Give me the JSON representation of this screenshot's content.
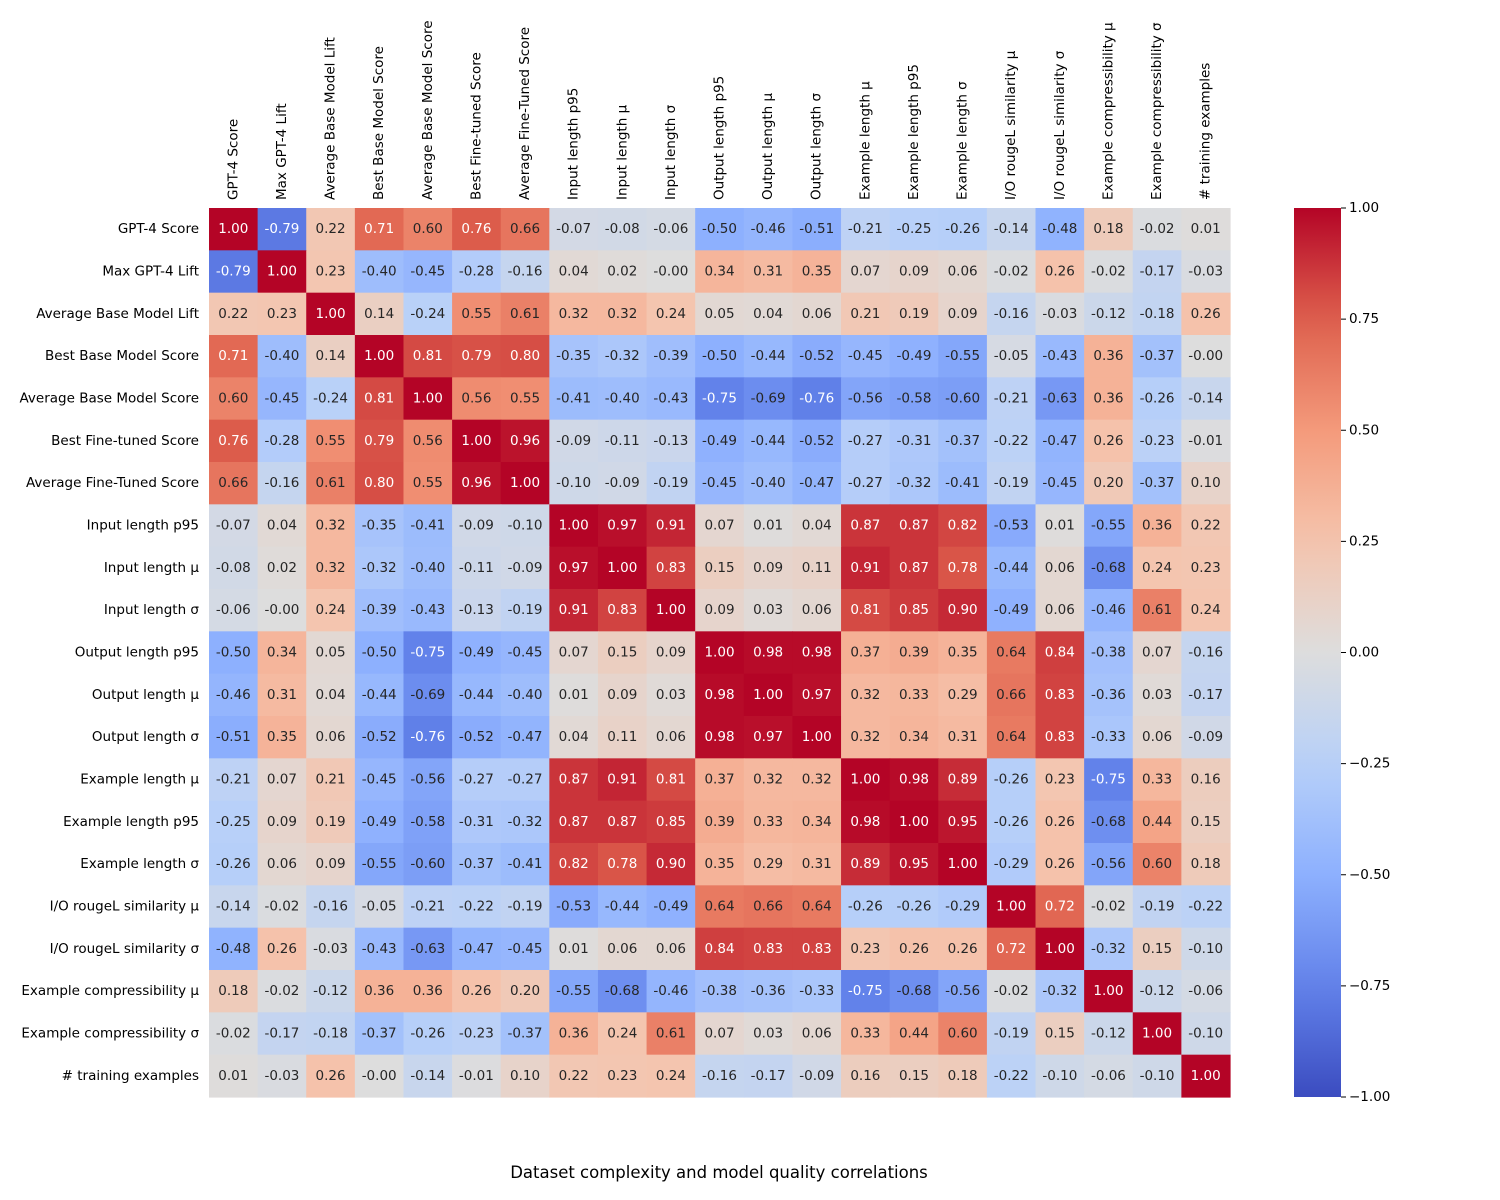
{
  "chart_data": {
    "type": "heatmap",
    "title": "Dataset complexity and model quality correlations",
    "colormap": "coolwarm",
    "vmin": -1.0,
    "vmax": 1.0,
    "colorbar_ticks": [
      "1.00",
      "0.75",
      "0.50",
      "0.25",
      "0.00",
      "−0.25",
      "−0.50",
      "−0.75",
      "−1.00"
    ],
    "colorbar_tick_values": [
      1.0,
      0.75,
      0.5,
      0.25,
      0.0,
      -0.25,
      -0.5,
      -0.75,
      -1.0
    ],
    "labels": [
      "GPT-4 Score",
      "Max GPT-4 Lift",
      "Average Base Model Lift",
      "Best Base Model Score",
      "Average Base Model Score",
      "Best Fine-tuned Score",
      "Average Fine-Tuned Score",
      "Input length p95",
      "Input length μ",
      "Input length σ",
      "Output length p95",
      "Output length μ",
      "Output length σ",
      "Example length μ",
      "Example length p95",
      "Example length σ",
      "I/O rougeL similarity μ",
      "I/O rougeL similarity σ",
      "Example compressibility μ",
      "Example compressibility σ",
      "# training examples"
    ],
    "matrix": [
      [
        "1.00",
        "-0.79",
        "0.22",
        "0.71",
        "0.60",
        "0.76",
        "0.66",
        "-0.07",
        "-0.08",
        "-0.06",
        "-0.50",
        "-0.46",
        "-0.51",
        "-0.21",
        "-0.25",
        "-0.26",
        "-0.14",
        "-0.48",
        "0.18",
        "-0.02",
        "0.01"
      ],
      [
        "-0.79",
        "1.00",
        "0.23",
        "-0.40",
        "-0.45",
        "-0.28",
        "-0.16",
        "0.04",
        "0.02",
        "-0.00",
        "0.34",
        "0.31",
        "0.35",
        "0.07",
        "0.09",
        "0.06",
        "-0.02",
        "0.26",
        "-0.02",
        "-0.17",
        "-0.03"
      ],
      [
        "0.22",
        "0.23",
        "1.00",
        "0.14",
        "-0.24",
        "0.55",
        "0.61",
        "0.32",
        "0.32",
        "0.24",
        "0.05",
        "0.04",
        "0.06",
        "0.21",
        "0.19",
        "0.09",
        "-0.16",
        "-0.03",
        "-0.12",
        "-0.18",
        "0.26"
      ],
      [
        "0.71",
        "-0.40",
        "0.14",
        "1.00",
        "0.81",
        "0.79",
        "0.80",
        "-0.35",
        "-0.32",
        "-0.39",
        "-0.50",
        "-0.44",
        "-0.52",
        "-0.45",
        "-0.49",
        "-0.55",
        "-0.05",
        "-0.43",
        "0.36",
        "-0.37",
        "-0.00"
      ],
      [
        "0.60",
        "-0.45",
        "-0.24",
        "0.81",
        "1.00",
        "0.56",
        "0.55",
        "-0.41",
        "-0.40",
        "-0.43",
        "-0.75",
        "-0.69",
        "-0.76",
        "-0.56",
        "-0.58",
        "-0.60",
        "-0.21",
        "-0.63",
        "0.36",
        "-0.26",
        "-0.14"
      ],
      [
        "0.76",
        "-0.28",
        "0.55",
        "0.79",
        "0.56",
        "1.00",
        "0.96",
        "-0.09",
        "-0.11",
        "-0.13",
        "-0.49",
        "-0.44",
        "-0.52",
        "-0.27",
        "-0.31",
        "-0.37",
        "-0.22",
        "-0.47",
        "0.26",
        "-0.23",
        "-0.01"
      ],
      [
        "0.66",
        "-0.16",
        "0.61",
        "0.80",
        "0.55",
        "0.96",
        "1.00",
        "-0.10",
        "-0.09",
        "-0.19",
        "-0.45",
        "-0.40",
        "-0.47",
        "-0.27",
        "-0.32",
        "-0.41",
        "-0.19",
        "-0.45",
        "0.20",
        "-0.37",
        "0.10"
      ],
      [
        "-0.07",
        "0.04",
        "0.32",
        "-0.35",
        "-0.41",
        "-0.09",
        "-0.10",
        "1.00",
        "0.97",
        "0.91",
        "0.07",
        "0.01",
        "0.04",
        "0.87",
        "0.87",
        "0.82",
        "-0.53",
        "0.01",
        "-0.55",
        "0.36",
        "0.22"
      ],
      [
        "-0.08",
        "0.02",
        "0.32",
        "-0.32",
        "-0.40",
        "-0.11",
        "-0.09",
        "0.97",
        "1.00",
        "0.83",
        "0.15",
        "0.09",
        "0.11",
        "0.91",
        "0.87",
        "0.78",
        "-0.44",
        "0.06",
        "-0.68",
        "0.24",
        "0.23"
      ],
      [
        "-0.06",
        "-0.00",
        "0.24",
        "-0.39",
        "-0.43",
        "-0.13",
        "-0.19",
        "0.91",
        "0.83",
        "1.00",
        "0.09",
        "0.03",
        "0.06",
        "0.81",
        "0.85",
        "0.90",
        "-0.49",
        "0.06",
        "-0.46",
        "0.61",
        "0.24"
      ],
      [
        "-0.50",
        "0.34",
        "0.05",
        "-0.50",
        "-0.75",
        "-0.49",
        "-0.45",
        "0.07",
        "0.15",
        "0.09",
        "1.00",
        "0.98",
        "0.98",
        "0.37",
        "0.39",
        "0.35",
        "0.64",
        "0.84",
        "-0.38",
        "0.07",
        "-0.16"
      ],
      [
        "-0.46",
        "0.31",
        "0.04",
        "-0.44",
        "-0.69",
        "-0.44",
        "-0.40",
        "0.01",
        "0.09",
        "0.03",
        "0.98",
        "1.00",
        "0.97",
        "0.32",
        "0.33",
        "0.29",
        "0.66",
        "0.83",
        "-0.36",
        "0.03",
        "-0.17"
      ],
      [
        "-0.51",
        "0.35",
        "0.06",
        "-0.52",
        "-0.76",
        "-0.52",
        "-0.47",
        "0.04",
        "0.11",
        "0.06",
        "0.98",
        "0.97",
        "1.00",
        "0.32",
        "0.34",
        "0.31",
        "0.64",
        "0.83",
        "-0.33",
        "0.06",
        "-0.09"
      ],
      [
        "-0.21",
        "0.07",
        "0.21",
        "-0.45",
        "-0.56",
        "-0.27",
        "-0.27",
        "0.87",
        "0.91",
        "0.81",
        "0.37",
        "0.32",
        "0.32",
        "1.00",
        "0.98",
        "0.89",
        "-0.26",
        "0.23",
        "-0.75",
        "0.33",
        "0.16"
      ],
      [
        "-0.25",
        "0.09",
        "0.19",
        "-0.49",
        "-0.58",
        "-0.31",
        "-0.32",
        "0.87",
        "0.87",
        "0.85",
        "0.39",
        "0.33",
        "0.34",
        "0.98",
        "1.00",
        "0.95",
        "-0.26",
        "0.26",
        "-0.68",
        "0.44",
        "0.15"
      ],
      [
        "-0.26",
        "0.06",
        "0.09",
        "-0.55",
        "-0.60",
        "-0.37",
        "-0.41",
        "0.82",
        "0.78",
        "0.90",
        "0.35",
        "0.29",
        "0.31",
        "0.89",
        "0.95",
        "1.00",
        "-0.29",
        "0.26",
        "-0.56",
        "0.60",
        "0.18"
      ],
      [
        "-0.14",
        "-0.02",
        "-0.16",
        "-0.05",
        "-0.21",
        "-0.22",
        "-0.19",
        "-0.53",
        "-0.44",
        "-0.49",
        "0.64",
        "0.66",
        "0.64",
        "-0.26",
        "-0.26",
        "-0.29",
        "1.00",
        "0.72",
        "-0.02",
        "-0.19",
        "-0.22"
      ],
      [
        "-0.48",
        "0.26",
        "-0.03",
        "-0.43",
        "-0.63",
        "-0.47",
        "-0.45",
        "0.01",
        "0.06",
        "0.06",
        "0.84",
        "0.83",
        "0.83",
        "0.23",
        "0.26",
        "0.26",
        "0.72",
        "1.00",
        "-0.32",
        "0.15",
        "-0.10"
      ],
      [
        "0.18",
        "-0.02",
        "-0.12",
        "0.36",
        "0.36",
        "0.26",
        "0.20",
        "-0.55",
        "-0.68",
        "-0.46",
        "-0.38",
        "-0.36",
        "-0.33",
        "-0.75",
        "-0.68",
        "-0.56",
        "-0.02",
        "-0.32",
        "1.00",
        "-0.12",
        "-0.06"
      ],
      [
        "-0.02",
        "-0.17",
        "-0.18",
        "-0.37",
        "-0.26",
        "-0.23",
        "-0.37",
        "0.36",
        "0.24",
        "0.61",
        "0.07",
        "0.03",
        "0.06",
        "0.33",
        "0.44",
        "0.60",
        "-0.19",
        "0.15",
        "-0.12",
        "1.00",
        "-0.10"
      ],
      [
        "0.01",
        "-0.03",
        "0.26",
        "-0.00",
        "-0.14",
        "-0.01",
        "0.10",
        "0.22",
        "0.23",
        "0.24",
        "-0.16",
        "-0.17",
        "-0.09",
        "0.16",
        "0.15",
        "0.18",
        "-0.22",
        "-0.10",
        "-0.06",
        "-0.10",
        "1.00"
      ]
    ]
  }
}
